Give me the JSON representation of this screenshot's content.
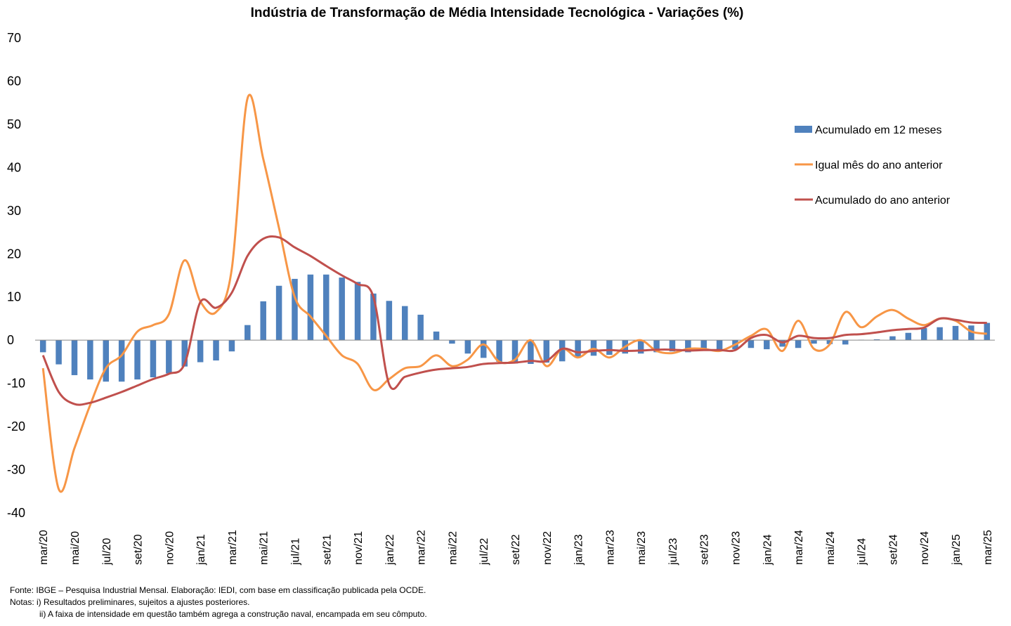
{
  "chart_data": {
    "type": "bar",
    "title": "Indústria de Transformação de Média Intensidade Tecnológica - Variações (%)",
    "ylim": [
      -40,
      70
    ],
    "yticks": [
      70,
      60,
      50,
      40,
      30,
      20,
      10,
      0,
      -10,
      -20,
      -30,
      -40
    ],
    "categories": [
      "mar/20",
      "abr/20",
      "mai/20",
      "jun/20",
      "jul/20",
      "ago/20",
      "set/20",
      "out/20",
      "nov/20",
      "dez/20",
      "jan/21",
      "fev/21",
      "mar/21",
      "abr/21",
      "mai/21",
      "jun/21",
      "jul/21",
      "ago/21",
      "set/21",
      "out/21",
      "nov/21",
      "dez/21",
      "jan/22",
      "fev/22",
      "mar/22",
      "abr/22",
      "mai/22",
      "jun/22",
      "jul/22",
      "ago/22",
      "set/22",
      "out/22",
      "nov/22",
      "dez/22",
      "jan/23",
      "fev/23",
      "mar/23",
      "abr/23",
      "mai/23",
      "jun/23",
      "jul/23",
      "ago/23",
      "set/23",
      "out/23",
      "nov/23",
      "dez/23",
      "jan/24",
      "fev/24",
      "mar/24",
      "abr/24",
      "mai/24",
      "jun/24",
      "jul/24",
      "ago/24",
      "set/24",
      "out/24",
      "nov/24",
      "dez/24",
      "jan/25",
      "fev/25",
      "mar/25"
    ],
    "tick_labels": [
      "mar/20",
      "mai/20",
      "jul/20",
      "set/20",
      "nov/20",
      "jan/21",
      "mar/21",
      "mai/21",
      "jul/21",
      "set/21",
      "nov/21",
      "jan/22",
      "mar/22",
      "mai/22",
      "jul/22",
      "set/22",
      "nov/22",
      "jan/23",
      "mar/23",
      "mai/23",
      "jul/23",
      "set/23",
      "nov/23",
      "jan/24",
      "mar/24",
      "mai/24",
      "jul/24",
      "set/24",
      "nov/24",
      "jan/25",
      "mar/25"
    ],
    "series": [
      {
        "name": "Acumulado em 12 meses",
        "type": "bar",
        "color": "#4f81bd",
        "values": [
          -2.8,
          -5.6,
          -8.1,
          -9.1,
          -9.6,
          -9.6,
          -9.1,
          -8.6,
          -7.7,
          -6.1,
          -5.1,
          -4.7,
          -2.6,
          3.5,
          9.0,
          12.6,
          14.2,
          15.2,
          15.2,
          14.5,
          13.5,
          10.8,
          9.1,
          7.9,
          5.9,
          2.0,
          -0.8,
          -3.1,
          -4.1,
          -5.0,
          -5.4,
          -5.5,
          -5.2,
          -4.9,
          -4.1,
          -3.6,
          -3.4,
          -3.1,
          -3.1,
          -2.8,
          -2.6,
          -2.8,
          -2.4,
          -2.3,
          -2.1,
          -1.8,
          -2.1,
          -1.5,
          -1.8,
          -0.8,
          -0.9,
          -1.0,
          0.1,
          0.2,
          0.9,
          1.7,
          2.8,
          3.0,
          3.3,
          3.4,
          4.0
        ]
      },
      {
        "name": "Igual mês do ano anterior",
        "type": "line",
        "color": "#f79646",
        "values": [
          -6.5,
          -34.5,
          -25.0,
          -15.0,
          -6.5,
          -3.5,
          2.0,
          3.5,
          6.0,
          18.5,
          9.0,
          6.5,
          16.5,
          56.0,
          42.0,
          26.0,
          10.0,
          5.5,
          1.0,
          -3.5,
          -5.5,
          -11.5,
          -9.0,
          -6.5,
          -6.0,
          -3.5,
          -6.0,
          -4.5,
          -1.0,
          -5.0,
          -4.5,
          0.0,
          -6.0,
          -2.0,
          -4.0,
          -2.0,
          -4.0,
          -1.5,
          0.0,
          -2.5,
          -3.0,
          -2.0,
          -2.0,
          -2.5,
          -1.0,
          1.0,
          2.5,
          -2.5,
          4.5,
          -2.0,
          -1.0,
          6.5,
          3.0,
          5.5,
          7.0,
          5.0,
          3.5,
          5.0,
          4.5,
          2.0,
          1.5
        ]
      },
      {
        "name": "Acumulado do ano anterior",
        "type": "line",
        "color": "#c0504d",
        "values": [
          -3.5,
          -12.0,
          -14.8,
          -14.5,
          -13.3,
          -12.0,
          -10.5,
          -9.0,
          -7.8,
          -5.5,
          8.8,
          7.5,
          11.0,
          19.5,
          23.5,
          23.8,
          21.5,
          19.5,
          17.2,
          15.0,
          13.0,
          10.0,
          -10.2,
          -8.5,
          -7.5,
          -6.8,
          -6.5,
          -6.2,
          -5.5,
          -5.3,
          -5.2,
          -4.8,
          -4.8,
          -2.0,
          -2.8,
          -2.5,
          -2.3,
          -2.5,
          -2.4,
          -2.2,
          -2.2,
          -2.4,
          -2.3,
          -2.3,
          -2.3,
          0.5,
          1.2,
          -0.5,
          1.0,
          0.5,
          0.5,
          1.2,
          1.4,
          1.8,
          2.3,
          2.6,
          2.9,
          5.0,
          4.7,
          4.1,
          4.0
        ]
      }
    ],
    "legend_position": "right",
    "grid": false
  },
  "footnotes": {
    "source": "Fonte: IBGE – Pesquisa Industrial Mensal. Elaboração: IEDI, com base em classificação publicada pela OCDE.",
    "note1": "Notas: i) Resultados preliminares, sujeitos a ajustes posteriores.",
    "note2": "ii) A faixa de intensidade em questão também agrega a construção naval, encampada em seu cômputo."
  }
}
